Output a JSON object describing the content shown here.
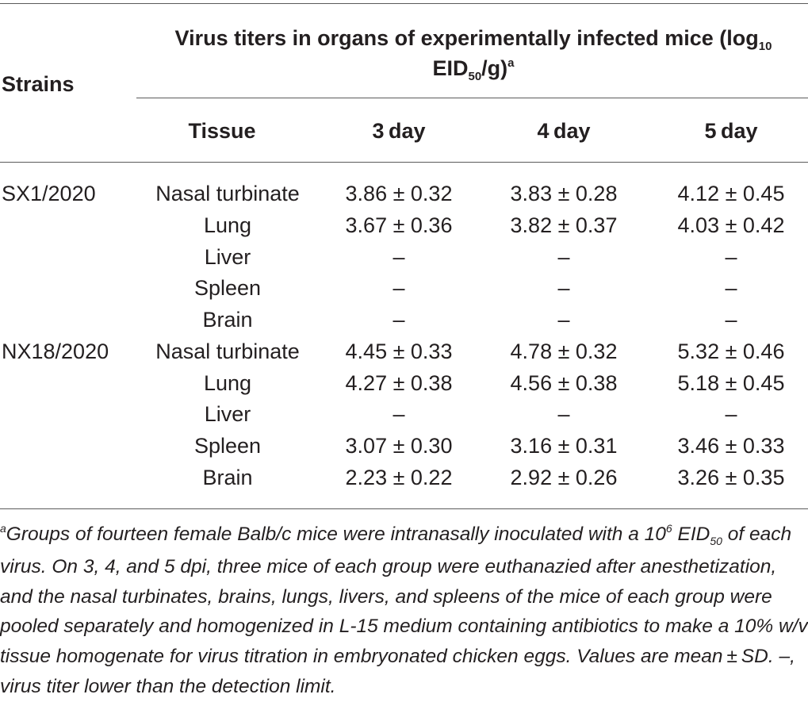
{
  "table": {
    "header": {
      "strains_label": "Strains",
      "group_title_line1": "Virus titers in organs of experimentally infected mice (log",
      "group_title_line1_sub": "10",
      "group_title_line2_pre": "EID",
      "group_title_line2_sub": "50",
      "group_title_line2_post": "/g)",
      "group_title_sup": "a",
      "tissue_label": "Tissue",
      "day3_label": "3 day",
      "day4_label": "4 day",
      "day5_label": "5 day"
    },
    "rows": [
      {
        "strain": "SX1/2020",
        "tissue": "Nasal turbinate",
        "d3": "3.86 ± 0.32",
        "d4": "3.83 ± 0.28",
        "d5": "4.12 ± 0.45"
      },
      {
        "strain": "",
        "tissue": "Lung",
        "d3": "3.67 ± 0.36",
        "d4": "3.82 ± 0.37",
        "d5": "4.03 ± 0.42"
      },
      {
        "strain": "",
        "tissue": "Liver",
        "d3": "–",
        "d4": "–",
        "d5": "–"
      },
      {
        "strain": "",
        "tissue": "Spleen",
        "d3": "–",
        "d4": "–",
        "d5": "–"
      },
      {
        "strain": "",
        "tissue": "Brain",
        "d3": "–",
        "d4": "–",
        "d5": "–"
      },
      {
        "strain": "NX18/2020",
        "tissue": "Nasal turbinate",
        "d3": "4.45 ± 0.33",
        "d4": "4.78 ± 0.32",
        "d5": "5.32 ± 0.46"
      },
      {
        "strain": "",
        "tissue": "Lung",
        "d3": "4.27 ± 0.38",
        "d4": "4.56 ± 0.38",
        "d5": "5.18 ± 0.45"
      },
      {
        "strain": "",
        "tissue": "Liver",
        "d3": "–",
        "d4": "–",
        "d5": "–"
      },
      {
        "strain": "",
        "tissue": "Spleen",
        "d3": "3.07 ± 0.30",
        "d4": "3.16 ± 0.31",
        "d5": "3.46 ± 0.33"
      },
      {
        "strain": "",
        "tissue": "Brain",
        "d3": "2.23 ± 0.22",
        "d4": "2.92 ± 0.26",
        "d5": "3.26 ± 0.35"
      }
    ]
  },
  "footnote": {
    "marker": "a",
    "part1": "Groups of fourteen female Balb/c mice were intranasally inoculated with a 10",
    "sup6": "6",
    "part2": " EID",
    "sub50": "50",
    "part3": " of each virus. On 3, 4, and 5 dpi, three mice of each group were euthanazied after anesthetization, and the nasal turbinates, brains, lungs, livers, and spleens of the mice of each group were pooled separately and homogenized in L-15 medium containing antibiotics to make a 10% w/v tissue homogenate for virus titration in embryonated chicken eggs. Values are mean ± SD. –, virus titer lower than the detection limit."
  }
}
